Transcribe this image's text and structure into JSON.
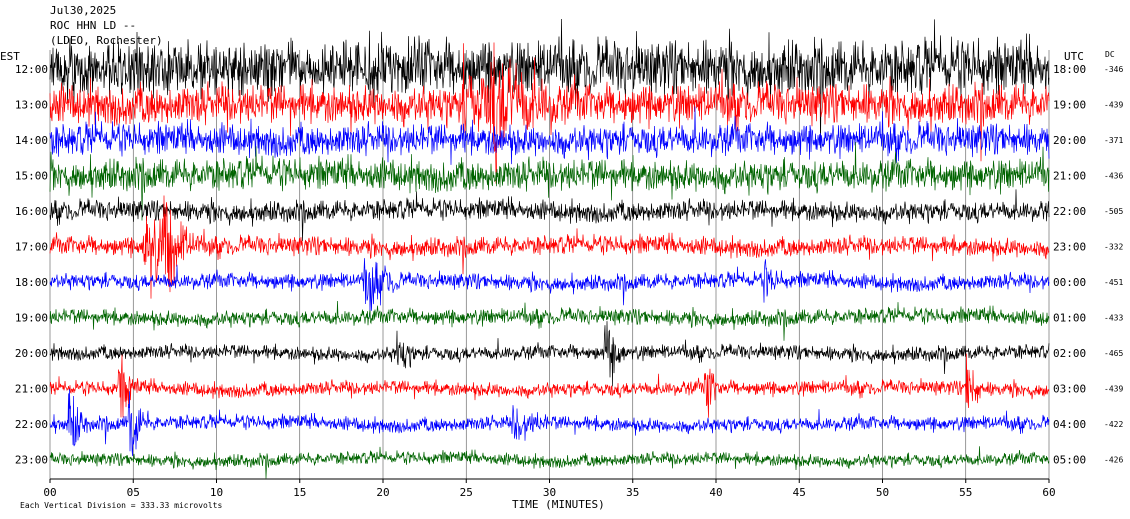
{
  "header": {
    "date": "Jul30,2025",
    "station": "ROC HHN LD --",
    "location": "(LDEO, Rochester)"
  },
  "axis": {
    "left_tz": "EST",
    "right_tz": "UTC",
    "dc_label": "DC",
    "xlabel": "TIME (MINUTES)",
    "scale_note": "Each Vertical Division = 333.33 microvolts"
  },
  "colors": [
    "#000000",
    "#ff0000",
    "#0000ff",
    "#006400"
  ],
  "chart_data": {
    "type": "line",
    "title": "",
    "xlabel": "TIME (MINUTES)",
    "xlim": [
      0,
      60
    ],
    "x_ticks": [
      "00",
      "05",
      "10",
      "15",
      "20",
      "25",
      "30",
      "35",
      "40",
      "45",
      "50",
      "55",
      "60"
    ],
    "grid": true,
    "rows": [
      {
        "est": "12:00",
        "utc": "18:00",
        "dc": "-346"
      },
      {
        "est": "13:00",
        "utc": "19:00",
        "dc": "-439"
      },
      {
        "est": "14:00",
        "utc": "20:00",
        "dc": "-371"
      },
      {
        "est": "15:00",
        "utc": "21:00",
        "dc": "-436"
      },
      {
        "est": "16:00",
        "utc": "22:00",
        "dc": "-505"
      },
      {
        "est": "17:00",
        "utc": "23:00",
        "dc": "-332"
      },
      {
        "est": "18:00",
        "utc": "00:00",
        "dc": "-451"
      },
      {
        "est": "19:00",
        "utc": "01:00",
        "dc": "-433"
      },
      {
        "est": "20:00",
        "utc": "02:00",
        "dc": "-465"
      },
      {
        "est": "21:00",
        "utc": "03:00",
        "dc": "-439"
      },
      {
        "est": "22:00",
        "utc": "04:00",
        "dc": "-422"
      },
      {
        "est": "23:00",
        "utc": "05:00",
        "dc": "-426"
      }
    ],
    "amplitude_profile": [
      3.5,
      2.5,
      2.0,
      2.0,
      1.3,
      1.2,
      1.0,
      1.0,
      0.9,
      0.9,
      0.9,
      0.8
    ],
    "events": [
      {
        "row": 1,
        "minute": 26.6,
        "amplitude": 2.4,
        "duration_min": 4
      },
      {
        "row": 1,
        "minute": 25,
        "amplitude": 1.5,
        "duration_min": 3
      },
      {
        "row": 5,
        "minute": 5.8,
        "amplitude": 2.8,
        "duration_min": 2
      },
      {
        "row": 5,
        "minute": 7.0,
        "amplitude": 2.0,
        "duration_min": 2
      },
      {
        "row": 6,
        "minute": 19.0,
        "amplitude": 1.5,
        "duration_min": 2
      },
      {
        "row": 6,
        "minute": 43.0,
        "amplitude": 0.8,
        "duration_min": 1
      },
      {
        "row": 8,
        "minute": 33.5,
        "amplitude": 1.5,
        "duration_min": 1.2
      },
      {
        "row": 8,
        "minute": 21.0,
        "amplitude": 1.0,
        "duration_min": 1
      },
      {
        "row": 9,
        "minute": 4.3,
        "amplitude": 1.4,
        "duration_min": 1
      },
      {
        "row": 9,
        "minute": 39.5,
        "amplitude": 1.5,
        "duration_min": 0.8
      },
      {
        "row": 9,
        "minute": 55.2,
        "amplitude": 1.8,
        "duration_min": 0.8
      },
      {
        "row": 10,
        "minute": 1.3,
        "amplitude": 1.5,
        "duration_min": 1
      },
      {
        "row": 10,
        "minute": 4.9,
        "amplitude": 2.0,
        "duration_min": 1
      },
      {
        "row": 10,
        "minute": 28.0,
        "amplitude": 0.8,
        "duration_min": 2
      }
    ]
  }
}
